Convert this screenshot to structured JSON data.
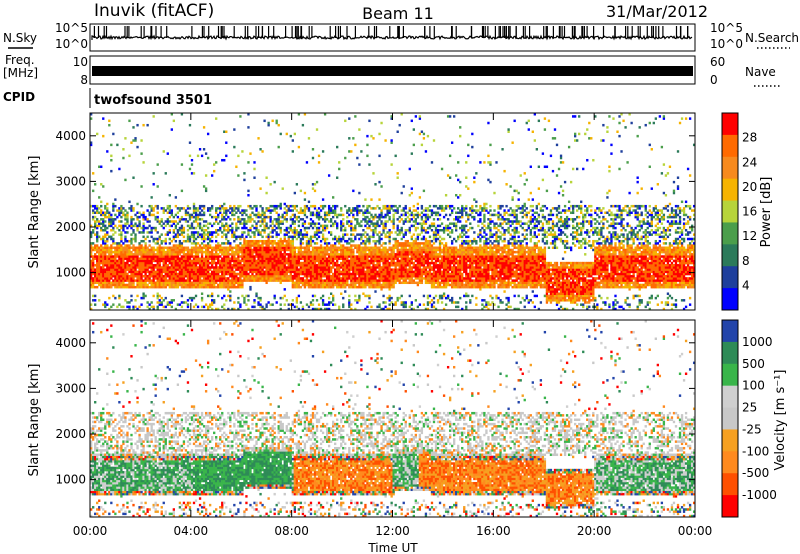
{
  "header": {
    "station": "Inuvik (fitACF)",
    "beam": "Beam 11",
    "date": "31/Mar/2012"
  },
  "strip_labels": {
    "nsky": "N.Sky",
    "nsearch": "N.Search",
    "freq_line1": "Freq.",
    "freq_line2": "[MHz]",
    "nave": "Nave",
    "cpid": "CPID",
    "cpid_value": "twofsound 3501",
    "count_ticks": [
      "10^5",
      "10^0"
    ],
    "freq_ticks": [
      "10",
      "8"
    ],
    "nave_ticks": [
      "60",
      "0"
    ]
  },
  "colors": {
    "power": [
      "#0000ff",
      "#1e3f9c",
      "#2b7a5a",
      "#4b9e4b",
      "#b7d43a",
      "#f6b300",
      "#f78a1e",
      "#ff6a00",
      "#ff0000"
    ],
    "velocity": [
      "#ff0000",
      "#ff5000",
      "#ff8a1e",
      "#f6a020",
      "#c8c8c8",
      "#cfcfcf",
      "#39b54a",
      "#2e8b57",
      "#2244aa"
    ]
  },
  "chart_data": [
    {
      "type": "heatmap",
      "panel": "power",
      "xlabel": "Time UT",
      "ylabel": "Slant Range [km]",
      "x_ticks": [
        "00:00",
        "04:00",
        "08:00",
        "12:00",
        "16:00",
        "20:00",
        "00:00"
      ],
      "y_ticks": [
        "1000",
        "2000",
        "3000",
        "4000"
      ],
      "ylim": [
        180,
        4500
      ],
      "xlim_hours": [
        0,
        24
      ],
      "colorbar": {
        "label": "Power [dB]",
        "ticks": [
          "28",
          "24",
          "20",
          "16",
          "12",
          "8",
          "4"
        ]
      }
    },
    {
      "type": "heatmap",
      "panel": "velocity",
      "xlabel": "Time UT",
      "ylabel": "Slant Range [km]",
      "x_ticks": [
        "00:00",
        "04:00",
        "08:00",
        "12:00",
        "16:00",
        "20:00",
        "00:00"
      ],
      "y_ticks": [
        "1000",
        "2000",
        "3000",
        "4000"
      ],
      "ylim": [
        180,
        4500
      ],
      "xlim_hours": [
        0,
        24
      ],
      "colorbar": {
        "label": "Velocity [m s⁻¹]",
        "ticks": [
          "1000",
          "500",
          "100",
          "25",
          "-25",
          "-100",
          "-500",
          "-1000"
        ]
      }
    }
  ]
}
